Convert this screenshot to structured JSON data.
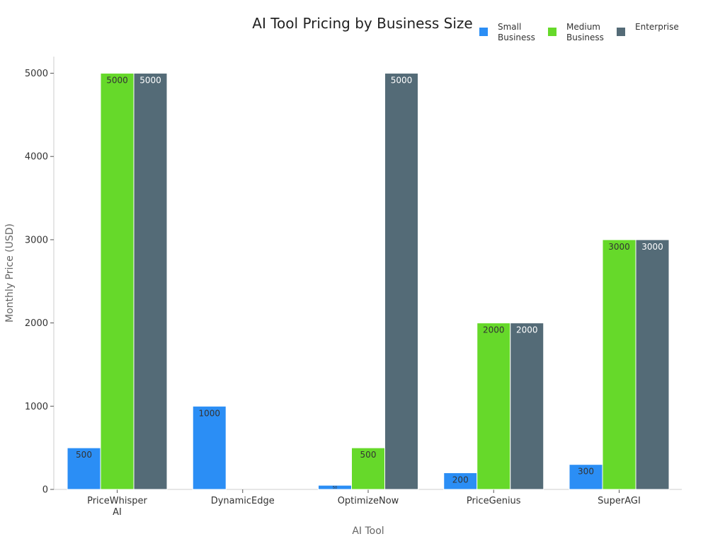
{
  "chart_data": {
    "type": "bar",
    "title": "AI Tool Pricing by Business Size",
    "xlabel": "AI Tool",
    "ylabel": "Monthly Price (USD)",
    "categories": [
      [
        "PriceWhisper",
        "AI"
      ],
      [
        "DynamicEdge"
      ],
      [
        "OptimizeNow"
      ],
      [
        "PriceGenius"
      ],
      [
        "SuperAGI"
      ]
    ],
    "ylim": [
      0,
      5200
    ],
    "yticks": [
      0,
      1000,
      2000,
      3000,
      4000,
      5000
    ],
    "grid": false,
    "legend_position": "top-right",
    "series": [
      {
        "name": [
          "Small",
          "Business"
        ],
        "color": "#2b8ef5",
        "values": [
          500,
          1000,
          50,
          200,
          300
        ],
        "labels": [
          "500",
          "1000",
          "50",
          "200",
          "300"
        ],
        "label_color": "#333333"
      },
      {
        "name": [
          "Medium",
          "Business"
        ],
        "color": "#66d92a",
        "values": [
          5000,
          null,
          500,
          2000,
          3000
        ],
        "labels": [
          "5000",
          "",
          "500",
          "2000",
          "3000"
        ],
        "label_color": "#333333"
      },
      {
        "name": [
          "Enterprise"
        ],
        "color": "#546b77",
        "values": [
          5000,
          null,
          5000,
          2000,
          3000
        ],
        "labels": [
          "5000",
          "",
          "5000",
          "2000",
          "3000"
        ],
        "label_color": "#ffffff"
      }
    ]
  }
}
